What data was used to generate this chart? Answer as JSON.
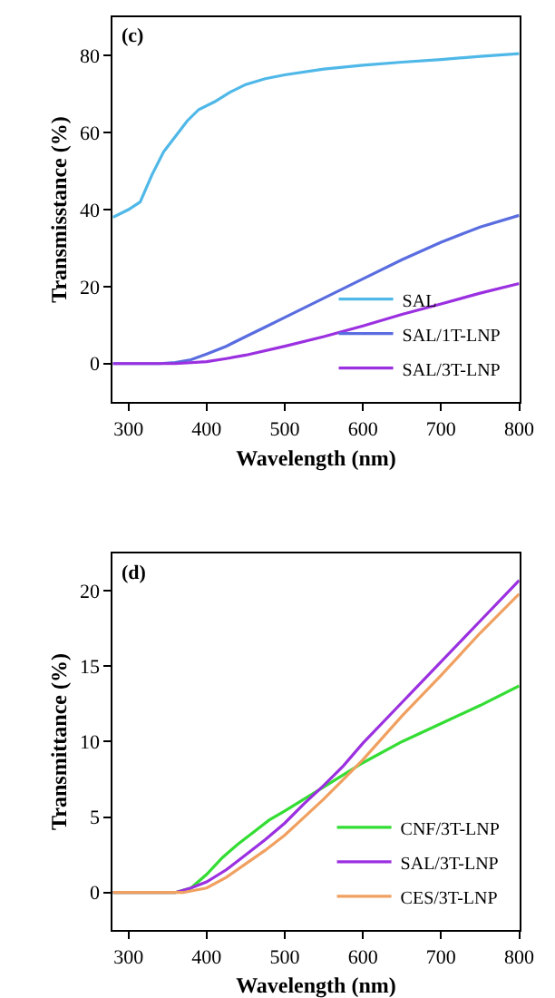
{
  "chart_data": [
    {
      "type": "line",
      "annotations": [
        "(c)"
      ],
      "xlabel": "Wavelength (nm)",
      "ylabel": "Transmisstance (%)",
      "xlim": [
        280,
        800
      ],
      "xticks": [
        300,
        400,
        500,
        600,
        700,
        800
      ],
      "ylim": [
        -10,
        90
      ],
      "yticks": [
        0,
        20,
        40,
        60,
        80
      ],
      "legend": "bottom right",
      "marker": "none",
      "line_style": "solid",
      "series": [
        {
          "name": "SAL",
          "color": "#4fb8e8",
          "x": [
            280,
            300,
            315,
            330,
            345,
            360,
            375,
            390,
            410,
            430,
            450,
            475,
            500,
            550,
            600,
            650,
            700,
            750,
            800
          ],
          "values": [
            38,
            40,
            42,
            49,
            55,
            59,
            63,
            66,
            68,
            70.5,
            72.5,
            74,
            75,
            76.5,
            77.5,
            78.3,
            79,
            79.8,
            80.5
          ]
        },
        {
          "name": "SAL/1T-LNP",
          "color": "#5a6de0",
          "x": [
            280,
            340,
            360,
            380,
            400,
            425,
            450,
            475,
            500,
            550,
            600,
            650,
            700,
            750,
            800
          ],
          "values": [
            0,
            0,
            0.3,
            1,
            2.5,
            4.5,
            7,
            9.5,
            12,
            17,
            22,
            27,
            31.5,
            35.5,
            38.5
          ]
        },
        {
          "name": "SAL/3T-LNP",
          "color": "#9b30e0",
          "x": [
            280,
            360,
            400,
            425,
            450,
            500,
            550,
            600,
            650,
            700,
            750,
            800
          ],
          "values": [
            0,
            0,
            0.5,
            1.3,
            2.2,
            4.5,
            7,
            9.8,
            12.8,
            15.5,
            18.3,
            20.8
          ]
        }
      ]
    },
    {
      "type": "line",
      "annotations": [
        "(d)"
      ],
      "xlabel": "Wavelength (nm)",
      "ylabel": "Transmittance (%)",
      "xlim": [
        280,
        800
      ],
      "xticks": [
        300,
        400,
        500,
        600,
        700,
        800
      ],
      "ylim": [
        -2.5,
        22.5
      ],
      "yticks": [
        0,
        5,
        10,
        15,
        20
      ],
      "legend": "bottom right",
      "marker": "none",
      "line_style": "solid",
      "series": [
        {
          "name": "CNF/3T-LNP",
          "color": "#33dd33",
          "x": [
            280,
            360,
            380,
            400,
            420,
            440,
            460,
            480,
            500,
            550,
            600,
            650,
            700,
            750,
            800
          ],
          "values": [
            0,
            0,
            0.3,
            1.2,
            2.3,
            3.2,
            4,
            4.8,
            5.4,
            7,
            8.6,
            10,
            11.2,
            12.4,
            13.7
          ]
        },
        {
          "name": "SAL/3T-LNP",
          "color": "#9b30e0",
          "x": [
            280,
            360,
            380,
            400,
            425,
            450,
            475,
            500,
            525,
            550,
            575,
            600,
            650,
            700,
            750,
            800
          ],
          "values": [
            0,
            0,
            0.3,
            0.7,
            1.5,
            2.5,
            3.5,
            4.6,
            5.9,
            7.1,
            8.4,
            9.9,
            12.6,
            15.3,
            18,
            20.7
          ]
        },
        {
          "name": "CES/3T-LNP",
          "color": "#f0a060",
          "x": [
            280,
            370,
            400,
            425,
            450,
            475,
            500,
            525,
            550,
            575,
            600,
            650,
            700,
            750,
            800
          ],
          "values": [
            0,
            0,
            0.3,
            1,
            1.9,
            2.8,
            3.8,
            5,
            6.2,
            7.5,
            8.8,
            11.7,
            14.4,
            17.2,
            19.8
          ]
        }
      ]
    }
  ]
}
